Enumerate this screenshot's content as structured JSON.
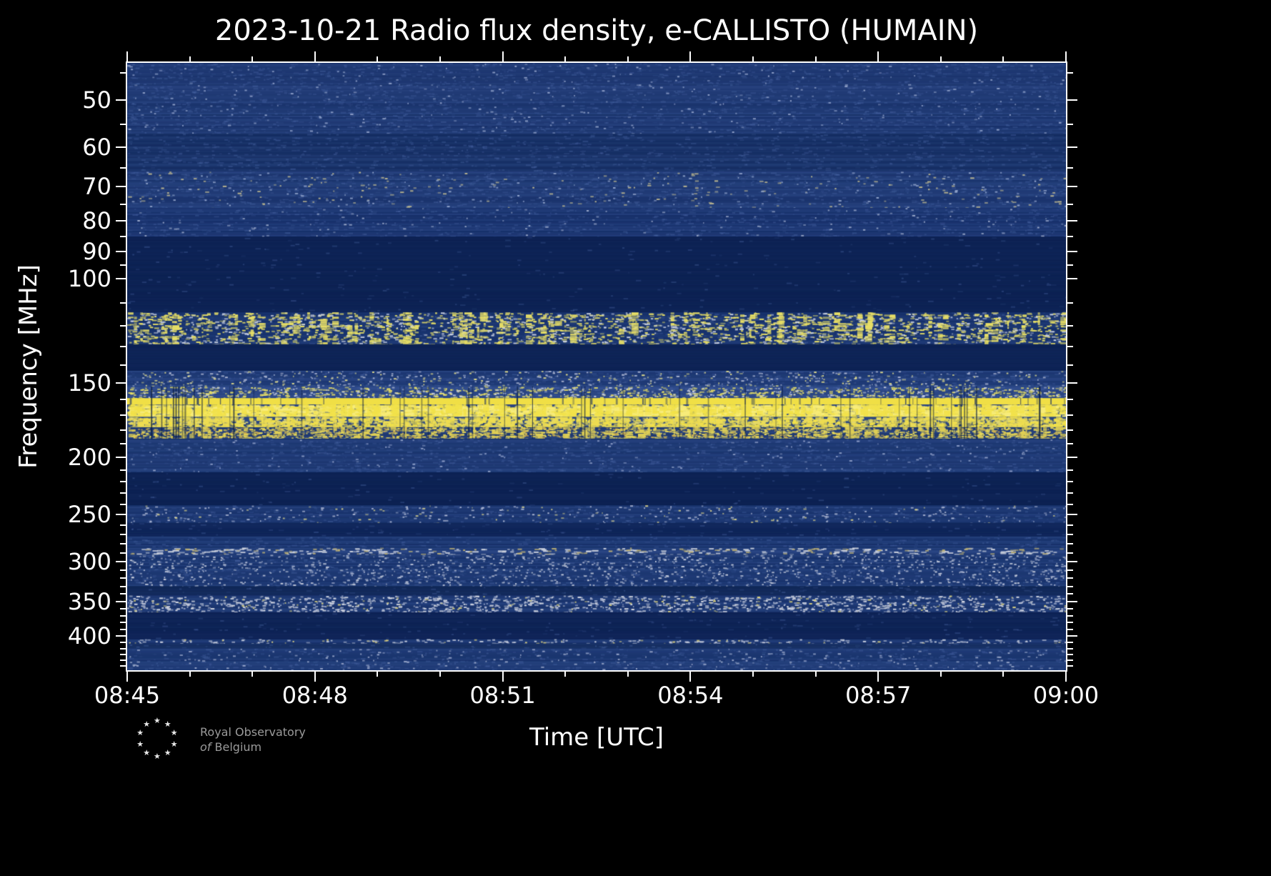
{
  "chart_data": {
    "type": "heatmap",
    "subtype": "radio-spectrogram",
    "title": "2023-10-21 Radio flux density, e-CALLISTO (HUMAIN)",
    "xlabel": "Time [UTC]",
    "ylabel": "Frequency [MHz]",
    "x_ticks": [
      "08:45",
      "08:48",
      "08:51",
      "08:54",
      "08:57",
      "09:00"
    ],
    "x_minor_step_minutes": 1,
    "x_range_minutes": 15,
    "y_ticks": [
      50,
      60,
      70,
      80,
      90,
      100,
      150,
      200,
      250,
      300,
      350,
      400
    ],
    "y_minor_ticks": [
      45,
      55,
      65,
      75,
      85,
      95,
      110,
      120,
      130,
      140,
      160,
      170,
      180,
      190,
      210,
      220,
      230,
      240,
      260,
      270,
      280,
      290,
      310,
      320,
      330,
      340,
      360,
      370,
      380,
      390,
      410,
      420,
      430,
      440,
      450
    ],
    "y_scale": "log",
    "y_axis_inverted": true,
    "freq_range_mhz": [
      43.3,
      457
    ],
    "time_start": "08:45",
    "time_end": "09:00",
    "legend": "none",
    "grid": false,
    "colors": {
      "background": "#000000",
      "quiet": "#0c2152",
      "frame": "#ffffff",
      "text": "#ffffff",
      "row_noise": "#3d5c9e",
      "grain": "#4f6bab",
      "strong_signal": "#f0df45"
    },
    "bands": [
      {
        "f": [
          43.3,
          57
        ],
        "base": "#1a336c",
        "rows": 0.35,
        "grain": 0.5,
        "speckles": [
          {
            "color": "#8fa0c8",
            "density": 0.06,
            "w": 3
          }
        ]
      },
      {
        "f": [
          57,
          66
        ],
        "base": "#152e63",
        "rows": 0.3,
        "grain": 0.35
      },
      {
        "f": [
          66,
          76
        ],
        "base": "#1a336c",
        "rows": 0.45,
        "grain": 0.5,
        "speckles": [
          {
            "color": "#b9b48e",
            "density": 0.06,
            "w": 4
          },
          {
            "color": "#93a5cc",
            "density": 0.06,
            "w": 3
          }
        ]
      },
      {
        "f": [
          76,
          85
        ],
        "base": "#17306a",
        "rows": 0.35,
        "grain": 0.4,
        "speckles": [
          {
            "color": "#9aa8c9",
            "density": 0.05,
            "w": 3
          }
        ]
      },
      {
        "f": [
          85,
          114
        ],
        "base": "#0c2152",
        "rows": 0.08,
        "grain": 0.05
      },
      {
        "f": [
          114,
          129
        ],
        "base": "#16306a",
        "rows": 0.25,
        "grain": 0.3,
        "speckles": [
          {
            "color": "#e8df66",
            "density": 0.5,
            "w": 5
          },
          {
            "color": "#cdd3e2",
            "density": 0.3,
            "w": 4
          }
        ],
        "bursts": {
          "count": 120,
          "color": "#e8df66",
          "p": 0.35
        }
      },
      {
        "f": [
          129,
          143
        ],
        "base": "#0d2254",
        "rows": 0.08
      },
      {
        "f": [
          143,
          152
        ],
        "base": "#1b356f",
        "rows": 0.45,
        "grain": 0.5,
        "speckles": [
          {
            "color": "#a8b2cf",
            "density": 0.25,
            "w": 3
          },
          {
            "color": "#ded98a",
            "density": 0.15,
            "w": 3
          }
        ]
      },
      {
        "f": [
          152,
          159
        ],
        "base": "#27417e",
        "rows": 0.5,
        "grain": 0.6,
        "speckles": [
          {
            "color": "#e5dd66",
            "density": 0.7,
            "w": 4
          },
          {
            "color": "#c7cde0",
            "density": 0.35,
            "w": 3
          }
        ]
      },
      {
        "f": [
          159,
          163
        ],
        "base": "#f0df45",
        "solid_gaps": true
      },
      {
        "f": [
          163,
          171
        ],
        "base": "#2a4480",
        "rows": 0.5,
        "speckles": [
          {
            "color": "#f2e24a",
            "density": 2.6,
            "w": 6,
            "h": 3
          },
          {
            "color": "#f7ec7a",
            "density": 1.2,
            "w": 8,
            "h": 3
          }
        ],
        "bursts": {
          "count": 300,
          "color": "#f2e24a",
          "p": 0.6
        }
      },
      {
        "f": [
          171,
          178
        ],
        "base": "#223b74",
        "rows": 0.5,
        "speckles": [
          {
            "color": "#f2e24a",
            "density": 2.0,
            "w": 5,
            "h": 3
          },
          {
            "color": "#dfd675",
            "density": 0.8,
            "w": 4
          }
        ],
        "bursts": {
          "count": 230,
          "color": "#eedd52",
          "p": 0.5
        }
      },
      {
        "f": [
          178,
          186
        ],
        "base": "#1f3870",
        "rows": 0.4,
        "speckles": [
          {
            "color": "#e8d95a",
            "density": 1.4,
            "w": 4
          },
          {
            "color": "#caa84f",
            "density": 0.5,
            "w": 3
          }
        ],
        "bursts": {
          "count": 150,
          "color": "#e0d055",
          "p": 0.4
        }
      },
      {
        "f": [
          186,
          212
        ],
        "base": "#1a346d",
        "rows": 0.4,
        "grain": 0.45,
        "speckles": [
          {
            "color": "#8d9dc6",
            "density": 0.06,
            "w": 3
          }
        ]
      },
      {
        "f": [
          212,
          241
        ],
        "base": "#0c2152",
        "rows": 0.08,
        "grain": 0.05
      },
      {
        "f": [
          241,
          258
        ],
        "base": "#18326b",
        "rows": 0.4,
        "grain": 0.4,
        "speckles": [
          {
            "color": "#a9b3d0",
            "density": 0.18,
            "w": 3
          },
          {
            "color": "#d3cc88",
            "density": 0.05,
            "w": 3
          }
        ]
      },
      {
        "f": [
          258,
          272
        ],
        "base": "#0e2458",
        "rows": 0.12,
        "grain": 0.1
      },
      {
        "f": [
          272,
          284
        ],
        "base": "#17316a",
        "rows": 0.35,
        "grain": 0.4
      },
      {
        "f": [
          284,
          292
        ],
        "base": "#1d3873",
        "rows": 0.45,
        "speckles": [
          {
            "color": "#cfd4df",
            "density": 0.5,
            "w": 6
          },
          {
            "color": "#b9ad74",
            "density": 0.2,
            "w": 5
          }
        ]
      },
      {
        "f": [
          292,
          330
        ],
        "base": "#17316a",
        "rows": 0.4,
        "grain": 0.5,
        "speckles": [
          {
            "color": "#c2c9da",
            "density": 0.2,
            "w": 3
          },
          {
            "color": "#9fabca",
            "density": 0.22,
            "w": 3
          }
        ]
      },
      {
        "f": [
          330,
          342
        ],
        "base": "#102757",
        "rows": 0.15,
        "grain": 0.15
      },
      {
        "f": [
          342,
          365
        ],
        "base": "#18326b",
        "rows": 0.4,
        "speckles": [
          {
            "color": "#d4d8e2",
            "density": 0.5,
            "w": 4
          },
          {
            "color": "#aab4d0",
            "density": 0.35,
            "w": 3
          },
          {
            "color": "#d8cf7c",
            "density": 0.08,
            "w": 3
          }
        ]
      },
      {
        "f": [
          365,
          405
        ],
        "base": "#0d2254",
        "rows": 0.1,
        "grain": 0.08
      },
      {
        "f": [
          405,
          412
        ],
        "base": "#1b356f",
        "rows": 0.4,
        "speckles": [
          {
            "color": "#c3cadb",
            "density": 0.55,
            "w": 4
          },
          {
            "color": "#cfc67e",
            "density": 0.12,
            "w": 3
          }
        ]
      },
      {
        "f": [
          412,
          420
        ],
        "base": "#122a5c",
        "rows": 0.2,
        "grain": 0.2
      },
      {
        "f": [
          420,
          457
        ],
        "base": "#17316a",
        "rows": 0.4,
        "grain": 0.45,
        "speckles": [
          {
            "color": "#97a5c8",
            "density": 0.14,
            "w": 3
          }
        ]
      }
    ],
    "artifacts": {
      "vertical_dark_lines": {
        "count": 50,
        "f": [
          152,
          186
        ],
        "color": "#081a3e"
      }
    }
  },
  "logo": {
    "line1": "Royal Observatory",
    "line2_prefix": "of",
    "line2_rest": "Belgium"
  },
  "icons": {
    "star-icon": "★"
  }
}
